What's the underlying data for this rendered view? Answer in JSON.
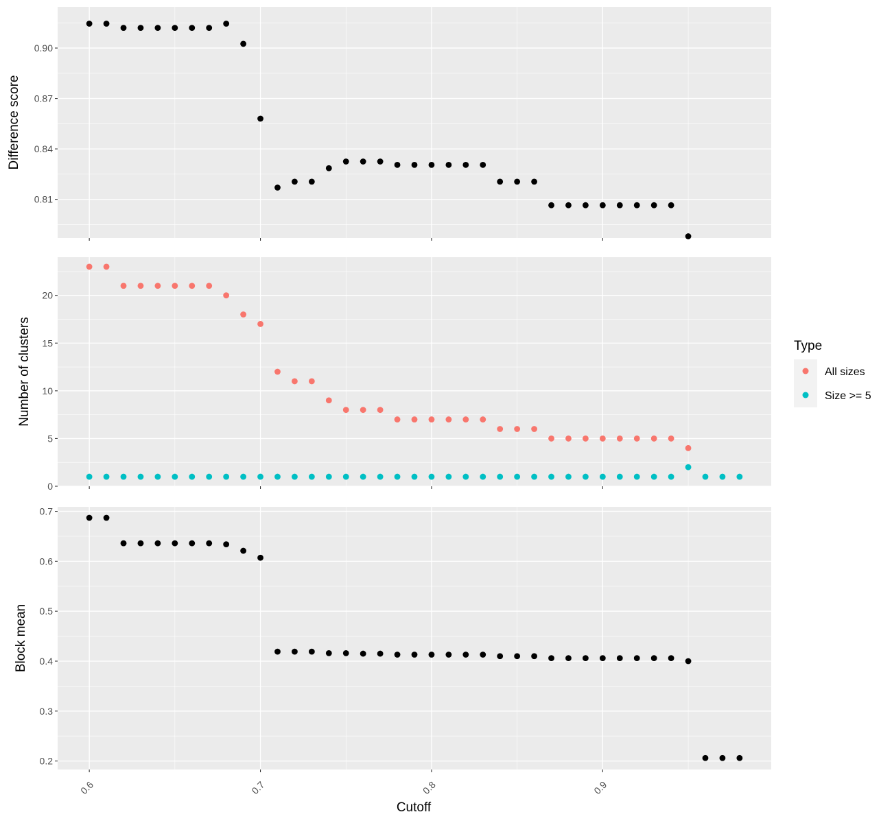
{
  "chart_data": [
    {
      "type": "scatter",
      "panel": "top",
      "ylabel": "Difference score",
      "ylim": [
        0.787,
        0.9245
      ],
      "y_ticks": [
        0.81,
        0.84,
        0.87,
        0.9
      ],
      "y_tick_labels": [
        "0.81",
        "0.84",
        "0.87",
        "0.90"
      ],
      "xlim": [
        0.5815,
        0.9985
      ],
      "x_ticks": [
        0.6,
        0.7,
        0.8,
        0.9
      ],
      "grid": true,
      "series": [
        {
          "color": "#000000",
          "x": [
            0.6,
            0.61,
            0.62,
            0.63,
            0.64,
            0.65,
            0.66,
            0.67,
            0.68,
            0.69,
            0.7,
            0.71,
            0.72,
            0.73,
            0.74,
            0.75,
            0.76,
            0.77,
            0.78,
            0.79,
            0.8,
            0.81,
            0.82,
            0.83,
            0.84,
            0.85,
            0.86,
            0.87,
            0.88,
            0.89,
            0.9,
            0.91,
            0.92,
            0.93,
            0.94,
            0.95
          ],
          "y": [
            0.9145,
            0.9145,
            0.912,
            0.912,
            0.912,
            0.912,
            0.912,
            0.912,
            0.9145,
            0.9025,
            0.858,
            0.817,
            0.8205,
            0.8205,
            0.8285,
            0.8325,
            0.8325,
            0.8325,
            0.8305,
            0.8305,
            0.8305,
            0.8305,
            0.8305,
            0.8305,
            0.8205,
            0.8205,
            0.8205,
            0.8065,
            0.8065,
            0.8065,
            0.8065,
            0.8065,
            0.8065,
            0.8065,
            0.8065,
            0.788
          ]
        }
      ]
    },
    {
      "type": "scatter",
      "panel": "middle",
      "ylabel": "Number of clusters",
      "ylim": [
        0,
        24
      ],
      "y_ticks": [
        0,
        5,
        10,
        15,
        20
      ],
      "y_tick_labels": [
        "0",
        "5",
        "10",
        "15",
        "20"
      ],
      "xlim": [
        0.5815,
        0.9985
      ],
      "x_ticks": [
        0.6,
        0.7,
        0.8,
        0.9
      ],
      "grid": true,
      "series": [
        {
          "name": "All sizes",
          "color": "#F8766D",
          "x": [
            0.6,
            0.61,
            0.62,
            0.63,
            0.64,
            0.65,
            0.66,
            0.67,
            0.68,
            0.69,
            0.7,
            0.71,
            0.72,
            0.73,
            0.74,
            0.75,
            0.76,
            0.77,
            0.78,
            0.79,
            0.8,
            0.81,
            0.82,
            0.83,
            0.84,
            0.85,
            0.86,
            0.87,
            0.88,
            0.89,
            0.9,
            0.91,
            0.92,
            0.93,
            0.94,
            0.95
          ],
          "y": [
            23,
            23,
            21,
            21,
            21,
            21,
            21,
            21,
            20,
            18,
            17,
            12,
            11,
            11,
            9,
            8,
            8,
            8,
            7,
            7,
            7,
            7,
            7,
            7,
            6,
            6,
            6,
            5,
            5,
            5,
            5,
            5,
            5,
            5,
            5,
            4
          ]
        },
        {
          "name": "Size >= 5",
          "color": "#00BFC4",
          "x": [
            0.6,
            0.61,
            0.62,
            0.63,
            0.64,
            0.65,
            0.66,
            0.67,
            0.68,
            0.69,
            0.7,
            0.71,
            0.72,
            0.73,
            0.74,
            0.75,
            0.76,
            0.77,
            0.78,
            0.79,
            0.8,
            0.81,
            0.82,
            0.83,
            0.84,
            0.85,
            0.86,
            0.87,
            0.88,
            0.89,
            0.9,
            0.91,
            0.92,
            0.93,
            0.94,
            0.95,
            0.96,
            0.97,
            0.98
          ],
          "y": [
            1,
            1,
            1,
            1,
            1,
            1,
            1,
            1,
            1,
            1,
            1,
            1,
            1,
            1,
            1,
            1,
            1,
            1,
            1,
            1,
            1,
            1,
            1,
            1,
            1,
            1,
            1,
            1,
            1,
            1,
            1,
            1,
            1,
            1,
            1,
            2,
            1,
            1,
            1
          ]
        }
      ]
    },
    {
      "type": "scatter",
      "panel": "bottom",
      "ylabel": "Block mean",
      "xlabel": "Cutoff",
      "ylim": [
        0.183,
        0.709
      ],
      "y_ticks": [
        0.2,
        0.3,
        0.4,
        0.5,
        0.6,
        0.7
      ],
      "y_tick_labels": [
        "0.2",
        "0.3",
        "0.4",
        "0.5",
        "0.6",
        "0.7"
      ],
      "xlim": [
        0.5815,
        0.9985
      ],
      "x_ticks": [
        0.6,
        0.7,
        0.8,
        0.9
      ],
      "x_tick_labels": [
        "0.6",
        "0.7",
        "0.8",
        "0.9"
      ],
      "grid": true,
      "series": [
        {
          "color": "#000000",
          "x": [
            0.6,
            0.61,
            0.62,
            0.63,
            0.64,
            0.65,
            0.66,
            0.67,
            0.68,
            0.69,
            0.7,
            0.71,
            0.72,
            0.73,
            0.74,
            0.75,
            0.76,
            0.77,
            0.78,
            0.79,
            0.8,
            0.81,
            0.82,
            0.83,
            0.84,
            0.85,
            0.86,
            0.87,
            0.88,
            0.89,
            0.9,
            0.91,
            0.92,
            0.93,
            0.94,
            0.95,
            0.96,
            0.97,
            0.98
          ],
          "y": [
            0.687,
            0.687,
            0.636,
            0.636,
            0.636,
            0.636,
            0.636,
            0.636,
            0.634,
            0.621,
            0.607,
            0.419,
            0.419,
            0.419,
            0.416,
            0.416,
            0.415,
            0.415,
            0.413,
            0.413,
            0.413,
            0.413,
            0.413,
            0.413,
            0.41,
            0.41,
            0.41,
            0.406,
            0.406,
            0.406,
            0.406,
            0.406,
            0.406,
            0.406,
            0.406,
            0.4,
            0.206,
            0.206,
            0.206
          ]
        }
      ]
    }
  ],
  "legend": {
    "title": "Type",
    "placement": "right",
    "items": [
      {
        "label": "All sizes",
        "color": "#F8766D"
      },
      {
        "label": "Size >= 5",
        "color": "#00BFC4"
      }
    ]
  },
  "style": {
    "panel_background": "#EBEBEB",
    "grid_color": "#FFFFFF",
    "tick_color": "#333333"
  }
}
